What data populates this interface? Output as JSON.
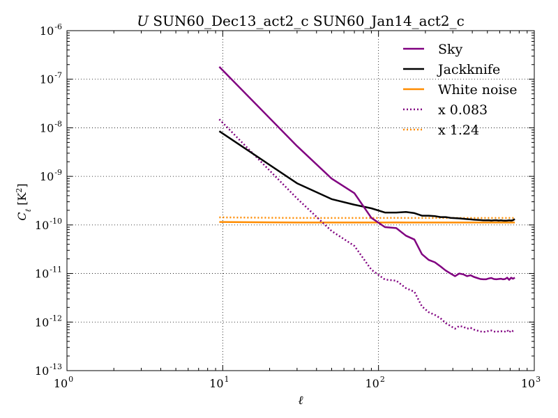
{
  "chart_data": {
    "type": "line",
    "title": "U SUN60_Dec13_act2_c SUN60_Jan14_act2_c",
    "title_italic": "U",
    "title_rest": " SUN60_Dec13_act2_c SUN60_Jan14_act2_c",
    "xlabel": "ℓ",
    "ylabel_main": "C",
    "ylabel_sub": "ℓ",
    "ylabel_unit_pre": " [K",
    "ylabel_unit_sup": "2",
    "ylabel_unit_post": "]",
    "xscale": "log",
    "yscale": "log",
    "xlim": [
      1,
      1000
    ],
    "ylim": [
      1e-13,
      1e-06
    ],
    "x_ticks": [
      {
        "value": 1,
        "base": "10",
        "exp": "0"
      },
      {
        "value": 10,
        "base": "10",
        "exp": "1"
      },
      {
        "value": 100,
        "base": "10",
        "exp": "2"
      },
      {
        "value": 1000,
        "base": "10",
        "exp": "3"
      }
    ],
    "y_ticks": [
      {
        "value": 1e-13,
        "base": "10",
        "exp": "-13"
      },
      {
        "value": 1e-12,
        "base": "10",
        "exp": "-12"
      },
      {
        "value": 1e-11,
        "base": "10",
        "exp": "-11"
      },
      {
        "value": 1e-10,
        "base": "10",
        "exp": "-10"
      },
      {
        "value": 1e-09,
        "base": "10",
        "exp": "-9"
      },
      {
        "value": 1e-08,
        "base": "10",
        "exp": "-8"
      },
      {
        "value": 1e-07,
        "base": "10",
        "exp": "-7"
      },
      {
        "value": 1e-06,
        "base": "10",
        "exp": "-6"
      }
    ],
    "grid": true,
    "legend_position": "top-right",
    "series": [
      {
        "name": "Sky",
        "color": "#800080",
        "style": "solid",
        "x": [
          9.5,
          30,
          50,
          70,
          90,
          110,
          130,
          150,
          170,
          190,
          210,
          230,
          250,
          270,
          290,
          310,
          330,
          350,
          370,
          390,
          410,
          430,
          450,
          470,
          490,
          510,
          530,
          550,
          570,
          590,
          610,
          630,
          650,
          670,
          690,
          710,
          730,
          750
        ],
        "y": [
          1.8e-07,
          4.2e-09,
          9e-10,
          4.5e-10,
          1.4e-10,
          9e-11,
          8.6e-11,
          6e-11,
          5e-11,
          2.5e-11,
          1.9e-11,
          1.7e-11,
          1.4e-11,
          1.15e-11,
          1e-11,
          8.8e-12,
          1e-11,
          9.6e-12,
          8.8e-12,
          9.2e-12,
          8.5e-12,
          8.1e-12,
          7.7e-12,
          7.6e-12,
          7.6e-12,
          7.9e-12,
          8.1e-12,
          7.7e-12,
          7.6e-12,
          7.7e-12,
          7.8e-12,
          7.6e-12,
          7.7e-12,
          8.2e-12,
          7.4e-12,
          8.2e-12,
          7.8e-12,
          8.2e-12
        ]
      },
      {
        "name": "Jackknife",
        "color": "#000000",
        "style": "solid",
        "x": [
          9.5,
          30,
          50,
          70,
          90,
          110,
          130,
          150,
          170,
          190,
          210,
          230,
          250,
          270,
          290,
          310,
          330,
          350,
          370,
          390,
          410,
          430,
          450,
          470,
          490,
          510,
          530,
          550,
          570,
          590,
          610,
          630,
          650,
          670,
          690,
          710,
          730,
          750
        ],
        "y": [
          8.5e-09,
          7.2e-10,
          3.4e-10,
          2.6e-10,
          2.2e-10,
          1.8e-10,
          1.8e-10,
          1.85e-10,
          1.75e-10,
          1.55e-10,
          1.55e-10,
          1.52e-10,
          1.45e-10,
          1.45e-10,
          1.4e-10,
          1.38e-10,
          1.36e-10,
          1.34e-10,
          1.32e-10,
          1.3e-10,
          1.28e-10,
          1.27e-10,
          1.26e-10,
          1.24e-10,
          1.24e-10,
          1.25e-10,
          1.23e-10,
          1.24e-10,
          1.25e-10,
          1.23e-10,
          1.24e-10,
          1.23e-10,
          1.22e-10,
          1.23e-10,
          1.24e-10,
          1.23e-10,
          1.25e-10,
          1.32e-10
        ]
      },
      {
        "name": "White noise",
        "color": "#FF8C00",
        "style": "solid",
        "x": [
          9.5,
          30,
          50,
          70,
          90,
          110,
          130,
          150,
          170,
          190,
          210,
          230,
          250,
          270,
          290,
          310,
          330,
          350,
          370,
          390,
          410,
          430,
          450,
          470,
          490,
          510,
          530,
          550,
          570,
          590,
          610,
          630,
          650,
          670,
          690,
          710,
          730,
          750
        ],
        "y": [
          1.15e-10,
          1.12e-10,
          1.12e-10,
          1.12e-10,
          1.12e-10,
          1.12e-10,
          1.13e-10,
          1.12e-10,
          1.12e-10,
          1.12e-10,
          1.12e-10,
          1.12e-10,
          1.12e-10,
          1.12e-10,
          1.12e-10,
          1.12e-10,
          1.12e-10,
          1.12e-10,
          1.12e-10,
          1.12e-10,
          1.12e-10,
          1.12e-10,
          1.12e-10,
          1.12e-10,
          1.12e-10,
          1.12e-10,
          1.12e-10,
          1.12e-10,
          1.12e-10,
          1.12e-10,
          1.12e-10,
          1.12e-10,
          1.12e-10,
          1.12e-10,
          1.12e-10,
          1.12e-10,
          1.12e-10,
          1.12e-10
        ]
      },
      {
        "name": "x 0.083",
        "color": "#800080",
        "style": "dotted",
        "x": [
          9.5,
          30,
          50,
          70,
          90,
          110,
          130,
          150,
          170,
          190,
          210,
          230,
          250,
          270,
          290,
          310,
          330,
          350,
          370,
          390,
          410,
          430,
          450,
          470,
          490,
          510,
          530,
          550,
          570,
          590,
          610,
          630,
          650,
          670,
          690,
          710,
          730,
          750
        ],
        "y": [
          1.5e-08,
          3.5e-10,
          7.5e-11,
          3.7e-11,
          1.2e-11,
          7.5e-12,
          7.1e-12,
          5e-12,
          4.2e-12,
          2.1e-12,
          1.6e-12,
          1.4e-12,
          1.2e-12,
          9.5e-13,
          8.3e-13,
          7.3e-13,
          8.3e-13,
          8e-13,
          7.3e-13,
          7.6e-13,
          7e-13,
          6.7e-13,
          6.4e-13,
          6.3e-13,
          6.3e-13,
          6.6e-13,
          6.7e-13,
          6.4e-13,
          6.3e-13,
          6.4e-13,
          6.5e-13,
          6.3e-13,
          6.4e-13,
          6.8e-13,
          6.1e-13,
          6.8e-13,
          6.5e-13,
          6.8e-13
        ]
      },
      {
        "name": "x 1.24",
        "color": "#FF8C00",
        "style": "dotted",
        "x": [
          9.5,
          30,
          50,
          70,
          90,
          110,
          130,
          150,
          170,
          190,
          210,
          230,
          250,
          270,
          290,
          310,
          330,
          350,
          370,
          390,
          410,
          430,
          450,
          470,
          490,
          510,
          530,
          550,
          570,
          590,
          610,
          630,
          650,
          670,
          690,
          710,
          730,
          750
        ],
        "y": [
          1.43e-10,
          1.39e-10,
          1.39e-10,
          1.39e-10,
          1.39e-10,
          1.39e-10,
          1.4e-10,
          1.39e-10,
          1.39e-10,
          1.39e-10,
          1.39e-10,
          1.39e-10,
          1.39e-10,
          1.39e-10,
          1.39e-10,
          1.39e-10,
          1.39e-10,
          1.39e-10,
          1.39e-10,
          1.39e-10,
          1.39e-10,
          1.39e-10,
          1.39e-10,
          1.39e-10,
          1.39e-10,
          1.39e-10,
          1.39e-10,
          1.39e-10,
          1.39e-10,
          1.39e-10,
          1.39e-10,
          1.39e-10,
          1.39e-10,
          1.39e-10,
          1.39e-10,
          1.39e-10,
          1.39e-10,
          1.39e-10
        ]
      }
    ]
  }
}
